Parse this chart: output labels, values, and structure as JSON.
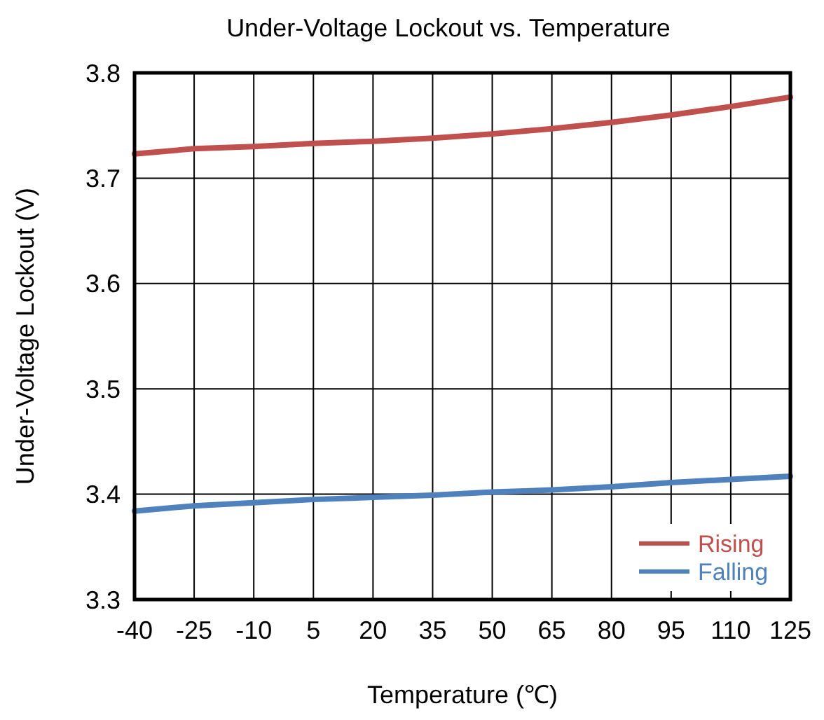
{
  "chart_data": {
    "type": "line",
    "title": "Under-Voltage Lockout vs. Temperature",
    "xlabel": "Temperature (℃)",
    "ylabel": "Under-Voltage Lockout (V)",
    "x": [
      -40,
      -25,
      -10,
      5,
      20,
      35,
      50,
      65,
      80,
      95,
      110,
      125
    ],
    "series": [
      {
        "name": "Rising",
        "color": "#c0504d",
        "values": [
          3.723,
          3.728,
          3.73,
          3.733,
          3.735,
          3.738,
          3.742,
          3.747,
          3.753,
          3.76,
          3.768,
          3.777
        ]
      },
      {
        "name": "Falling",
        "color": "#4f81bd",
        "values": [
          3.384,
          3.389,
          3.392,
          3.395,
          3.397,
          3.399,
          3.402,
          3.404,
          3.407,
          3.411,
          3.414,
          3.417
        ]
      }
    ],
    "xlim": [
      -40,
      125
    ],
    "xticks": [
      -40,
      -25,
      -10,
      5,
      20,
      35,
      50,
      65,
      80,
      95,
      110,
      125
    ],
    "ylim": [
      3.3,
      3.8
    ],
    "yticks": [
      {
        "value": 3.3,
        "label": "3.3"
      },
      {
        "value": 3.4,
        "label": "3.4"
      },
      {
        "value": 3.5,
        "label": "3.5"
      },
      {
        "value": 3.6,
        "label": "3.6"
      },
      {
        "value": 3.7,
        "label": "3.7"
      },
      {
        "value": 3.8,
        "label": "3.8"
      }
    ],
    "grid": true,
    "legend": "bottom right",
    "marker": "none",
    "line_style": "solid"
  }
}
